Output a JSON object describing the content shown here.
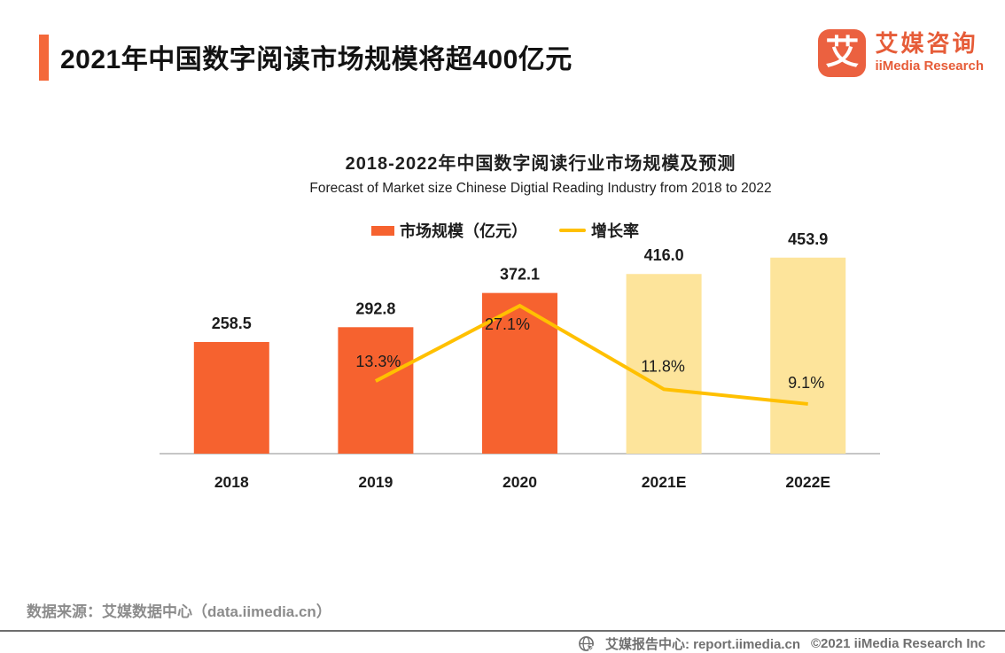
{
  "header": {
    "title": "2021年中国数字阅读市场规模将超400亿元",
    "accent_color": "#F4683A",
    "logo": {
      "glyph": "艾",
      "name_cn": "艾媒咨询",
      "name_en": "iiMedia Research",
      "color": "#E65C38"
    }
  },
  "chart_data": {
    "type": "bar+line",
    "title": "2018-2022年中国数字阅读行业市场规模及预测",
    "subtitle": "Forecast of Market size Chinese Digtial Reading Industry from 2018 to 2022",
    "categories": [
      "2018",
      "2019",
      "2020",
      "2021E",
      "2022E"
    ],
    "series": [
      {
        "name": "市场规模（亿元）",
        "type": "bar",
        "values": [
          258.5,
          292.8,
          372.1,
          416.0,
          453.9
        ],
        "labels": [
          "258.5",
          "292.8",
          "372.1",
          "416.0",
          "453.9"
        ],
        "colors": [
          "#F6622F",
          "#F6622F",
          "#F6622F",
          "#FDE49B",
          "#FDE49B"
        ]
      },
      {
        "name": "增长率",
        "type": "line",
        "color": "#FFC000",
        "values": [
          null,
          13.3,
          27.1,
          11.8,
          9.1
        ],
        "labels": [
          null,
          "13.3%",
          "27.1%",
          "11.8%",
          "9.1%"
        ]
      }
    ],
    "legend": [
      {
        "label": "市场规模（亿元）",
        "color": "#F6622F",
        "type": "bar"
      },
      {
        "label": "增长率",
        "color": "#FFC000",
        "type": "line"
      }
    ],
    "ylim": [
      0,
      500
    ],
    "y2lim": [
      0,
      30
    ],
    "grid": false,
    "legend_position": "top-center",
    "axis_color": "#B3B3B3"
  },
  "footer": {
    "source": "数据来源：艾媒数据中心（data.iimedia.cn）",
    "bottom_bar": {
      "site_label": "艾媒报告中心: report.iimedia.cn",
      "copyright": "©2021  iiMedia Research Inc"
    }
  }
}
